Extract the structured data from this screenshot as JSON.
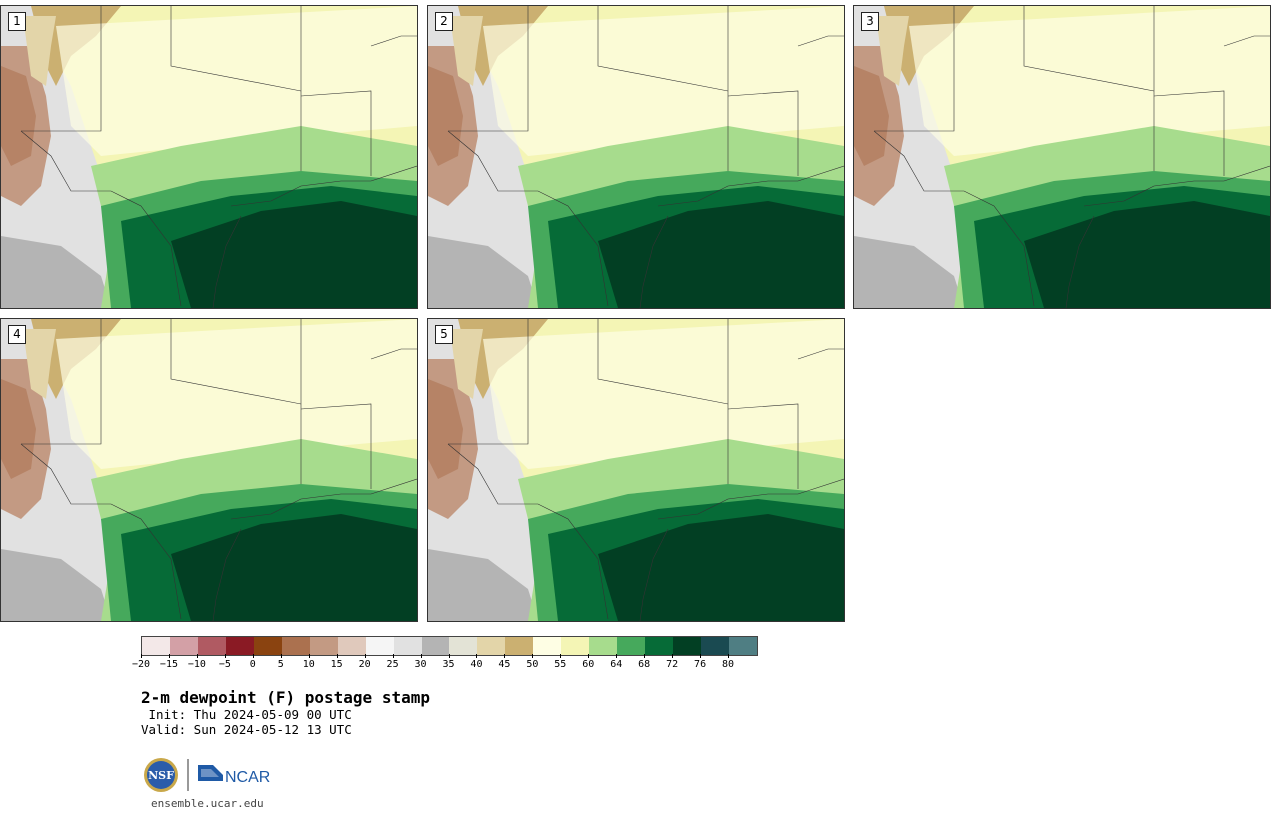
{
  "panels": [
    {
      "label": "1"
    },
    {
      "label": "2"
    },
    {
      "label": "3"
    },
    {
      "label": "4"
    },
    {
      "label": "5"
    }
  ],
  "legend": {
    "colors": [
      "#f3e8e8",
      "#d3a0a6",
      "#b05a62",
      "#8a1a24",
      "#8a4310",
      "#ab714f",
      "#c39a83",
      "#e0c9bc",
      "#f5f5f5",
      "#e1e1e1",
      "#b4b4b4",
      "#e3e3d6",
      "#e3d5a9",
      "#cbb071",
      "#fefee4",
      "#f4f5b5",
      "#a7dc8d",
      "#46a95c",
      "#066b37",
      "#023f23",
      "#1a4a51",
      "#4f7e83"
    ],
    "ticks": [
      "−20",
      "−15",
      "−10",
      "−5",
      "0",
      "5",
      "10",
      "15",
      "20",
      "25",
      "30",
      "35",
      "40",
      "45",
      "50",
      "55",
      "60",
      "64",
      "68",
      "72",
      "76",
      "80"
    ]
  },
  "title": "2-m dewpoint (F) postage stamp",
  "init": " Init: Thu 2024-05-09 00 UTC",
  "valid": "Valid: Sun 2024-05-12 13 UTC",
  "logos": {
    "nsf": "NSF",
    "ncar": "NCAR"
  },
  "url": "ensemble.ucar.edu"
}
